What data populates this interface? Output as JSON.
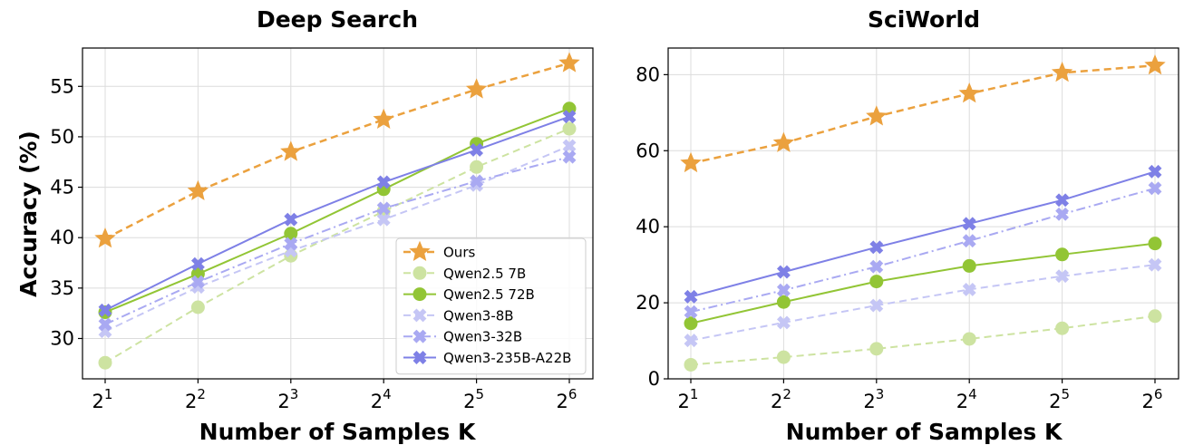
{
  "chart_data": [
    {
      "type": "line",
      "title": "Deep Search",
      "xlabel": "Number of Samples K",
      "ylabel": "Accuracy (%)",
      "x": [
        2,
        4,
        8,
        16,
        32,
        64
      ],
      "x_tick_labels": [
        {
          "base": "2",
          "exp": "1"
        },
        {
          "base": "2",
          "exp": "2"
        },
        {
          "base": "2",
          "exp": "3"
        },
        {
          "base": "2",
          "exp": "4"
        },
        {
          "base": "2",
          "exp": "5"
        },
        {
          "base": "2",
          "exp": "6"
        }
      ],
      "x_scale": "log2",
      "ylim": [
        26,
        58.8
      ],
      "y_ticks": [
        30,
        35,
        40,
        45,
        50,
        55
      ],
      "grid": true,
      "legend": "bottom-right",
      "series": [
        {
          "name": "Ours",
          "values": [
            39.9,
            44.6,
            48.5,
            51.7,
            54.7,
            57.3
          ],
          "color": "#eba13e",
          "dash": "dashed",
          "marker": "star",
          "width": 2.5
        },
        {
          "name": "Qwen2.5 7B",
          "values": [
            27.6,
            33.1,
            38.2,
            42.6,
            47.0,
            50.8
          ],
          "color": "#cde3a1",
          "dash": "dashed",
          "marker": "circle",
          "width": 2
        },
        {
          "name": "Qwen2.5 72B",
          "values": [
            32.6,
            36.4,
            40.4,
            44.8,
            49.3,
            52.8
          ],
          "color": "#92c535",
          "dash": "solid",
          "marker": "circle",
          "width": 2
        },
        {
          "name": "Qwen3-8B",
          "values": [
            30.7,
            35.1,
            38.7,
            41.8,
            45.2,
            49.1
          ],
          "color": "#c5c6f5",
          "dash": "dashed",
          "marker": "x",
          "width": 2
        },
        {
          "name": "Qwen3-32B",
          "values": [
            31.4,
            35.6,
            39.4,
            42.9,
            45.6,
            48.0
          ],
          "color": "#a9a9f2",
          "dash": "dashdot",
          "marker": "x",
          "width": 2
        },
        {
          "name": "Qwen3-235B-A22B",
          "values": [
            32.8,
            37.4,
            41.8,
            45.5,
            48.7,
            52.0
          ],
          "color": "#7e80e6",
          "dash": "solid",
          "marker": "x",
          "width": 2
        }
      ]
    },
    {
      "type": "line",
      "title": "SciWorld",
      "xlabel": "Number of Samples K",
      "ylabel": "",
      "x": [
        2,
        4,
        8,
        16,
        32,
        64
      ],
      "x_tick_labels": [
        {
          "base": "2",
          "exp": "1"
        },
        {
          "base": "2",
          "exp": "2"
        },
        {
          "base": "2",
          "exp": "3"
        },
        {
          "base": "2",
          "exp": "4"
        },
        {
          "base": "2",
          "exp": "5"
        },
        {
          "base": "2",
          "exp": "6"
        }
      ],
      "x_scale": "log2",
      "ylim": [
        0,
        87
      ],
      "y_ticks": [
        0,
        20,
        40,
        60,
        80
      ],
      "grid": true,
      "series": [
        {
          "name": "Ours",
          "values": [
            56.7,
            62.0,
            69.0,
            75.0,
            80.5,
            82.4
          ],
          "color": "#eba13e",
          "dash": "dashed",
          "marker": "star",
          "width": 2.5
        },
        {
          "name": "Qwen2.5 7B",
          "values": [
            3.7,
            5.7,
            7.9,
            10.5,
            13.3,
            16.5
          ],
          "color": "#cde3a1",
          "dash": "dashed",
          "marker": "circle",
          "width": 2
        },
        {
          "name": "Qwen2.5 72B",
          "values": [
            14.6,
            20.2,
            25.6,
            29.7,
            32.7,
            35.6
          ],
          "color": "#92c535",
          "dash": "solid",
          "marker": "circle",
          "width": 2
        },
        {
          "name": "Qwen3-8B",
          "values": [
            10.1,
            14.8,
            19.3,
            23.5,
            27.0,
            30.0
          ],
          "color": "#c5c6f5",
          "dash": "dashed",
          "marker": "x",
          "width": 2
        },
        {
          "name": "Qwen3-32B",
          "values": [
            17.6,
            23.3,
            29.5,
            36.3,
            43.3,
            50.1
          ],
          "color": "#a9a9f2",
          "dash": "dashdot",
          "marker": "x",
          "width": 2
        },
        {
          "name": "Qwen3-235B-A22B",
          "values": [
            21.6,
            28.1,
            34.6,
            40.8,
            47.0,
            54.5
          ],
          "color": "#7e80e6",
          "dash": "solid",
          "marker": "x",
          "width": 2
        }
      ]
    }
  ]
}
